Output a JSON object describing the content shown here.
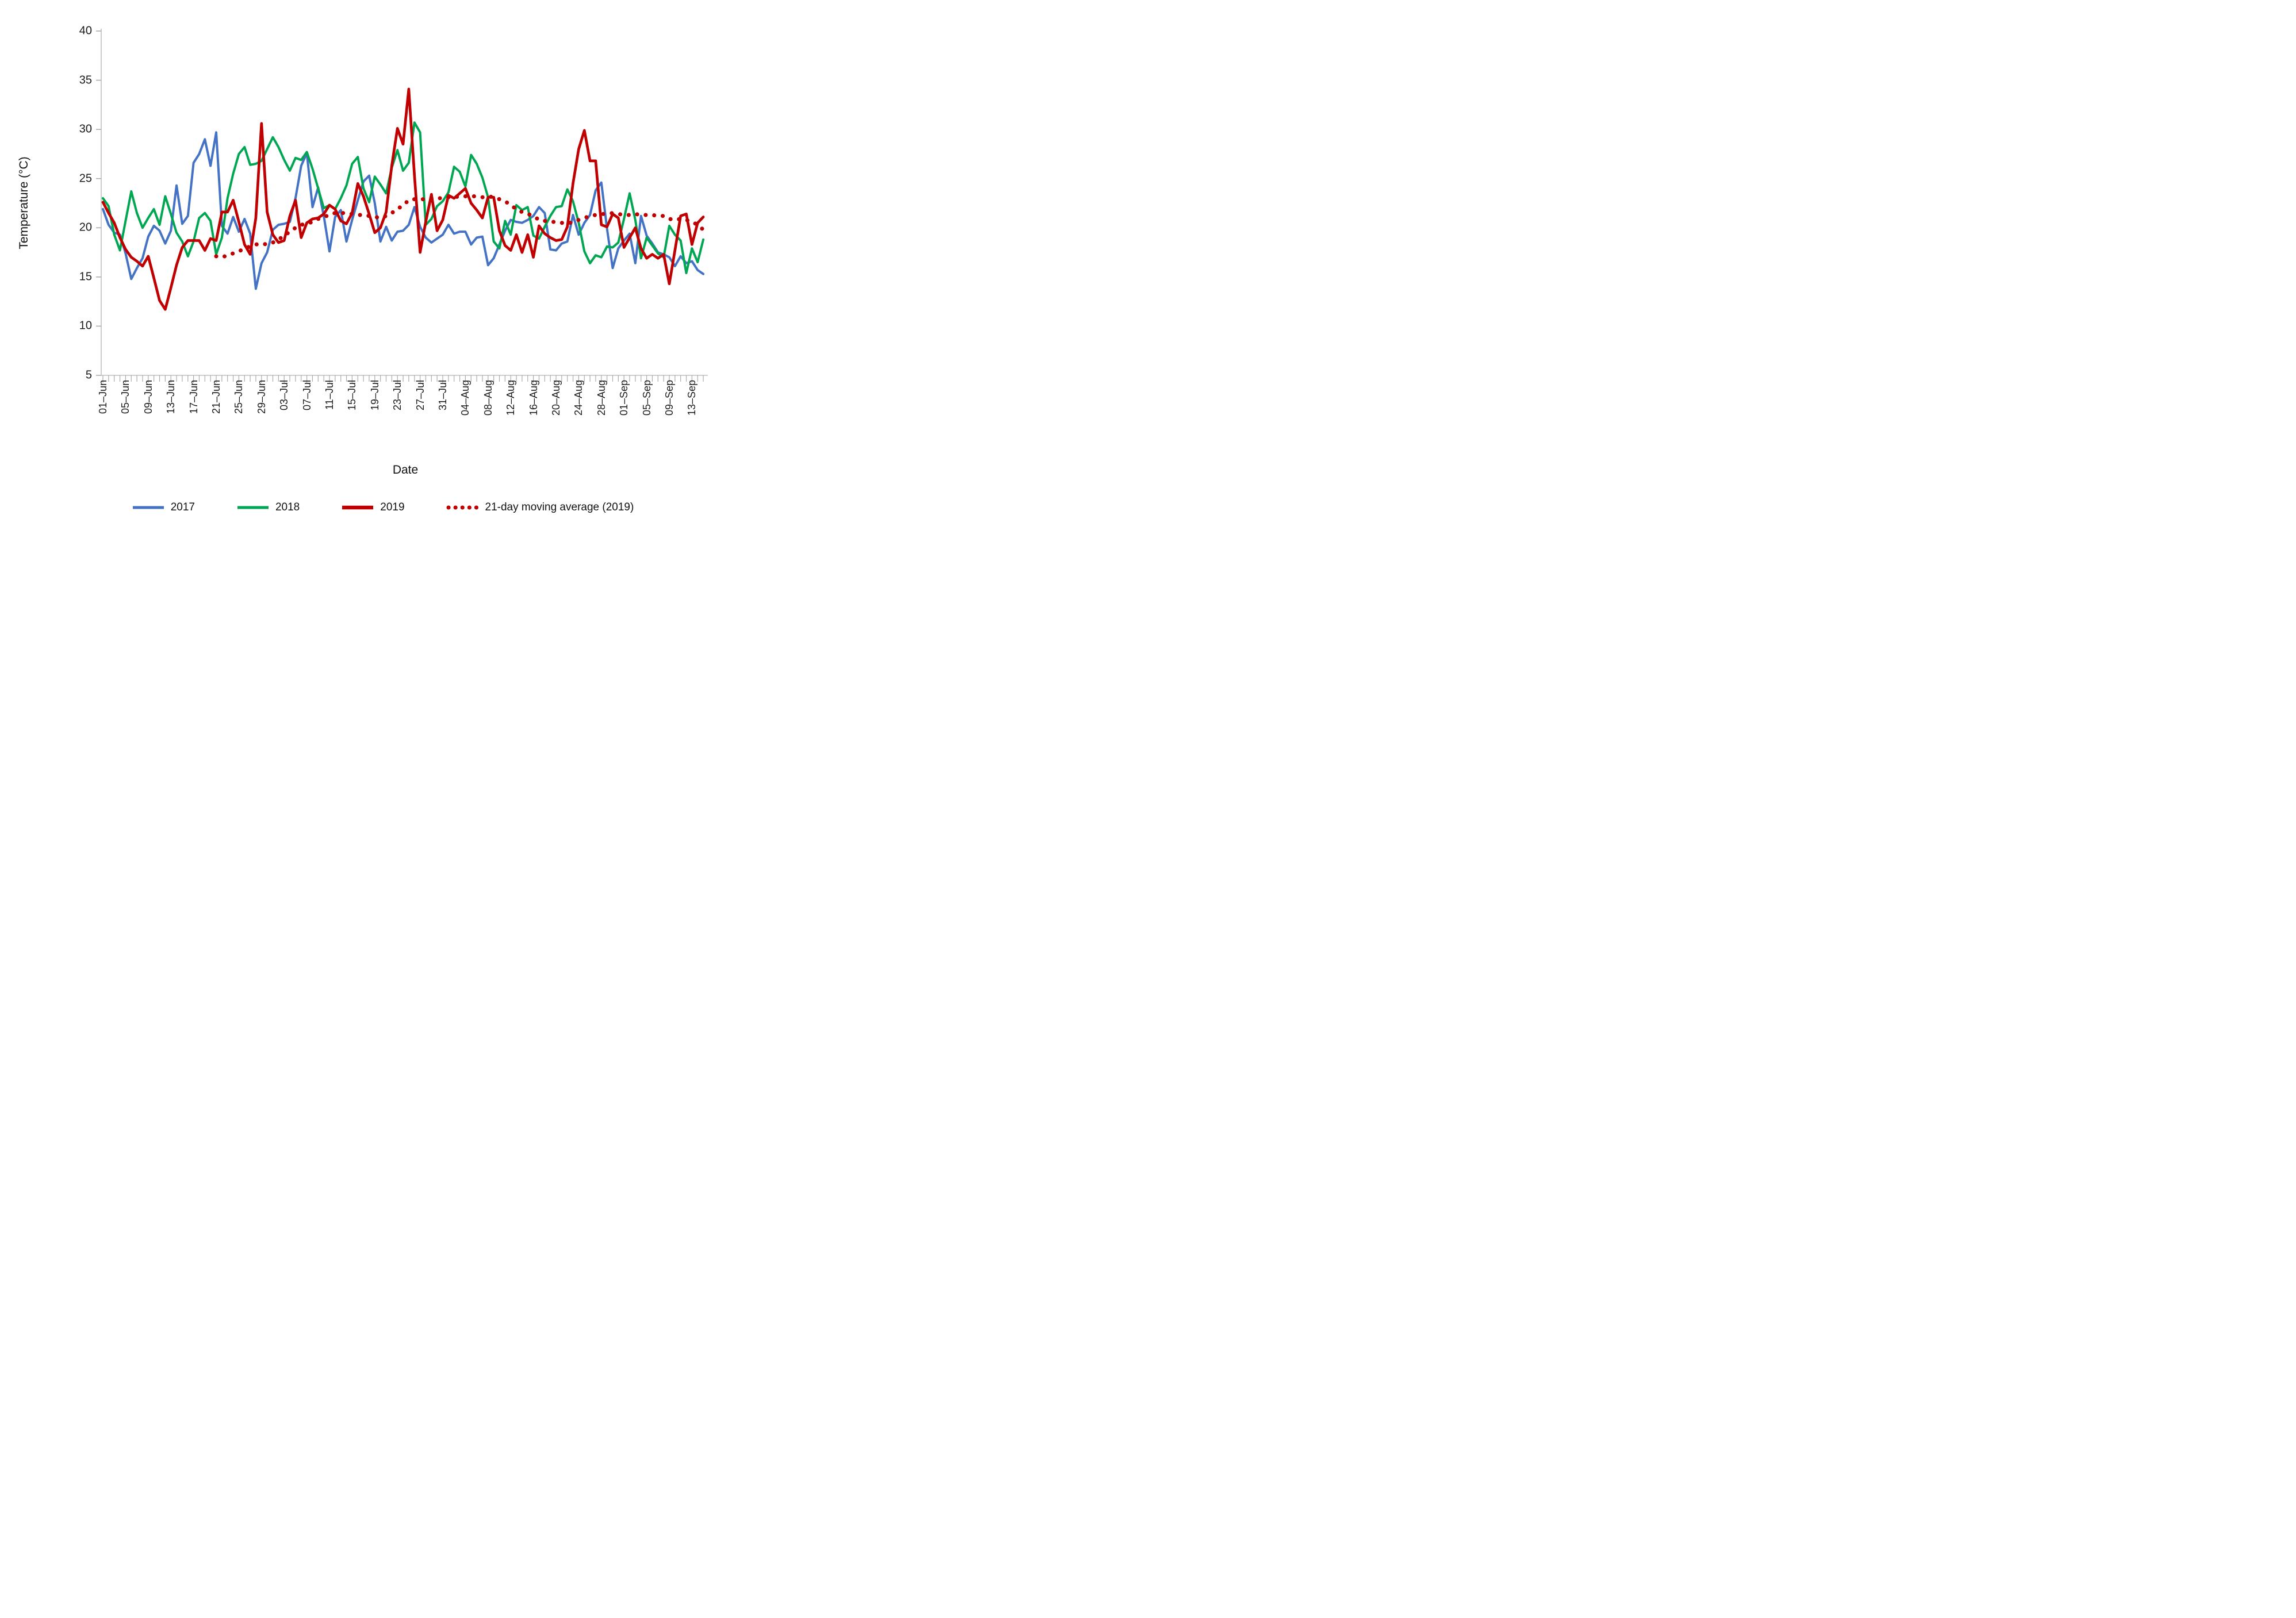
{
  "axes": {
    "y": {
      "label": "Temperature (°C)",
      "min": 5,
      "max": 40,
      "step": 5,
      "ticks": [
        5,
        10,
        15,
        20,
        25,
        30,
        35,
        40
      ]
    },
    "x": {
      "label": "Date",
      "tick_every_days": 4,
      "tick_labels": [
        "01–Jun",
        "05–Jun",
        "09–Jun",
        "13–Jun",
        "17–Jun",
        "21–Jun",
        "25–Jun",
        "29–Jun",
        "03–Jul",
        "07–Jul",
        "11–Jul",
        "15–Jul",
        "19–Jul",
        "23–Jul",
        "27–Jul",
        "31–Jul",
        "04–Aug",
        "08–Aug",
        "12–Aug",
        "16–Aug",
        "20–Aug",
        "24–Aug",
        "28–Aug",
        "01–Sep",
        "05–Sep",
        "09–Sep",
        "13–Sep"
      ]
    }
  },
  "legend": [
    {
      "label": "2017",
      "color": "#4472C4",
      "style": "solid",
      "width": 5
    },
    {
      "label": "2018",
      "color": "#00A651",
      "style": "solid",
      "width": 5
    },
    {
      "label": "2019",
      "color": "#C00000",
      "style": "solid",
      "width": 6.5
    },
    {
      "label": "21-day moving average (2019)",
      "color": "#C00000",
      "style": "dotted",
      "width": 7
    }
  ],
  "colors": {
    "axis_line": "#BFBFBF",
    "tick_mark": "#ABABAB",
    "text": "#1a1a1a"
  },
  "chart_data": {
    "type": "line",
    "title": "",
    "xlabel": "Date",
    "ylabel": "Temperature (°C)",
    "ylim": [
      5,
      40
    ],
    "grid": false,
    "days_total": 107,
    "x_range": [
      "01–Jun",
      "15–Sep"
    ],
    "series": [
      {
        "name": "2017",
        "color": "#4472C4",
        "values": [
          21.9,
          20.3,
          19.5,
          19.3,
          17.4,
          14.8,
          15.9,
          16.9,
          19.1,
          20.2,
          19.7,
          18.4,
          19.7,
          24.3,
          20.4,
          21.2,
          26.6,
          27.5,
          29.0,
          26.3,
          29.7,
          20.2,
          19.4,
          21.1,
          19.6,
          20.9,
          19.4,
          13.8,
          16.4,
          17.5,
          19.8,
          20.3,
          20.4,
          20.6,
          23.0,
          26.3,
          27.6,
          22.1,
          24.1,
          21.2,
          17.6,
          21.1,
          21.8,
          18.6,
          20.8,
          22.8,
          24.7,
          25.3,
          22.5,
          18.6,
          20.1,
          18.7,
          19.6,
          19.7,
          20.3,
          22.1,
          20.1,
          19.0,
          18.5,
          18.9,
          19.3,
          20.3,
          19.4,
          19.6,
          19.6,
          18.3,
          19.0,
          19.1,
          16.2,
          16.9,
          18.3,
          19.7,
          20.8,
          20.6,
          20.5,
          20.8,
          21.2,
          22.1,
          21.5,
          17.8,
          17.7,
          18.4,
          18.6,
          21.3,
          19.3,
          20.5,
          21.3,
          23.8,
          24.6,
          19.9,
          15.9,
          17.9,
          18.7,
          19.4,
          16.4,
          21.2,
          19.2,
          18.4,
          17.5,
          17.3,
          17.0,
          16.1,
          17.1,
          16.4,
          16.6,
          15.7,
          15.3
        ]
      },
      {
        "name": "2018",
        "color": "#00A651",
        "values": [
          23.0,
          22.2,
          19.3,
          17.7,
          20.7,
          23.7,
          21.5,
          20.0,
          21.0,
          21.9,
          20.3,
          23.2,
          21.4,
          19.5,
          18.6,
          17.1,
          18.6,
          21.0,
          21.5,
          20.7,
          17.3,
          19.0,
          23.0,
          25.5,
          27.5,
          28.2,
          26.4,
          26.5,
          26.8,
          28.0,
          29.2,
          28.2,
          26.9,
          25.8,
          27.1,
          26.9,
          27.7,
          26.0,
          24.0,
          22.0,
          22.3,
          21.9,
          23.0,
          24.3,
          26.5,
          27.2,
          24.0,
          22.6,
          25.2,
          24.4,
          23.5,
          26.1,
          27.9,
          25.8,
          26.6,
          30.7,
          29.7,
          20.3,
          20.9,
          22.2,
          22.7,
          23.6,
          26.2,
          25.7,
          24.2,
          27.4,
          26.5,
          25.1,
          23.1,
          18.6,
          17.9,
          20.7,
          19.3,
          22.3,
          21.8,
          22.1,
          19.2,
          18.9,
          20.1,
          21.2,
          22.1,
          22.2,
          23.9,
          22.7,
          20.5,
          17.6,
          16.4,
          17.2,
          17.0,
          18.1,
          18.0,
          18.5,
          20.9,
          23.5,
          20.8,
          16.9,
          19.0,
          18.2,
          17.4,
          17.0,
          20.2,
          19.3,
          18.7,
          15.4,
          17.9,
          16.5,
          18.8
        ]
      },
      {
        "name": "2019",
        "color": "#C00000",
        "values": [
          22.6,
          21.5,
          20.5,
          19.0,
          17.8,
          17.0,
          16.6,
          16.1,
          17.1,
          14.9,
          12.6,
          11.7,
          13.9,
          16.2,
          18.0,
          18.7,
          18.7,
          18.7,
          17.7,
          18.9,
          18.7,
          21.6,
          21.6,
          22.8,
          20.6,
          18.3,
          17.3,
          21.0,
          30.6,
          21.6,
          19.3,
          18.5,
          18.7,
          21.2,
          22.8,
          19.0,
          20.5,
          20.9,
          21.0,
          21.4,
          22.3,
          21.9,
          20.7,
          20.4,
          21.5,
          24.5,
          23.2,
          21.4,
          19.5,
          20.0,
          21.6,
          26.3,
          30.1,
          28.5,
          34.1,
          25.3,
          17.5,
          20.6,
          23.4,
          19.7,
          20.8,
          23.3,
          23.0,
          23.5,
          24.0,
          22.5,
          21.8,
          21.0,
          23.1,
          23.1,
          19.7,
          18.2,
          17.7,
          19.3,
          17.5,
          19.3,
          17.0,
          20.2,
          19.4,
          19.0,
          18.7,
          18.8,
          20.1,
          24.5,
          28.0,
          29.9,
          26.8,
          26.8,
          20.3,
          20.1,
          21.4,
          21.0,
          18.0,
          19.0,
          20.0,
          17.9,
          16.9,
          17.3,
          16.9,
          17.3,
          14.3,
          17.7,
          21.2,
          21.4,
          18.3,
          20.5,
          21.1
        ]
      },
      {
        "name": "21-day moving average (2019)",
        "color": "#C00000",
        "dotted": true,
        "values": [
          null,
          null,
          null,
          null,
          null,
          null,
          null,
          null,
          null,
          null,
          null,
          null,
          null,
          null,
          null,
          null,
          null,
          null,
          null,
          null,
          17.1,
          17.0,
          17.2,
          17.4,
          17.6,
          17.9,
          18.1,
          18.3,
          18.4,
          18.3,
          18.5,
          18.8,
          19.2,
          19.6,
          20.0,
          20.3,
          20.4,
          20.6,
          20.9,
          21.1,
          21.3,
          21.5,
          21.5,
          21.5,
          21.4,
          21.3,
          21.3,
          21.2,
          21.1,
          21.0,
          21.2,
          21.5,
          21.9,
          22.3,
          22.8,
          22.9,
          22.9,
          22.9,
          23.0,
          23.0,
          23.0,
          23.1,
          23.1,
          23.2,
          23.2,
          23.2,
          23.2,
          23.1,
          23.2,
          23.1,
          22.9,
          22.7,
          22.3,
          21.9,
          21.6,
          21.4,
          21.2,
          20.8,
          20.7,
          20.6,
          20.6,
          20.5,
          20.4,
          20.6,
          20.8,
          21.0,
          21.2,
          21.3,
          21.4,
          21.4,
          21.5,
          21.4,
          21.3,
          21.3,
          21.4,
          21.3,
          21.3,
          21.3,
          21.2,
          21.2,
          20.9,
          20.8,
          20.9,
          20.8,
          20.6,
          20.3,
          19.8
        ]
      }
    ]
  }
}
